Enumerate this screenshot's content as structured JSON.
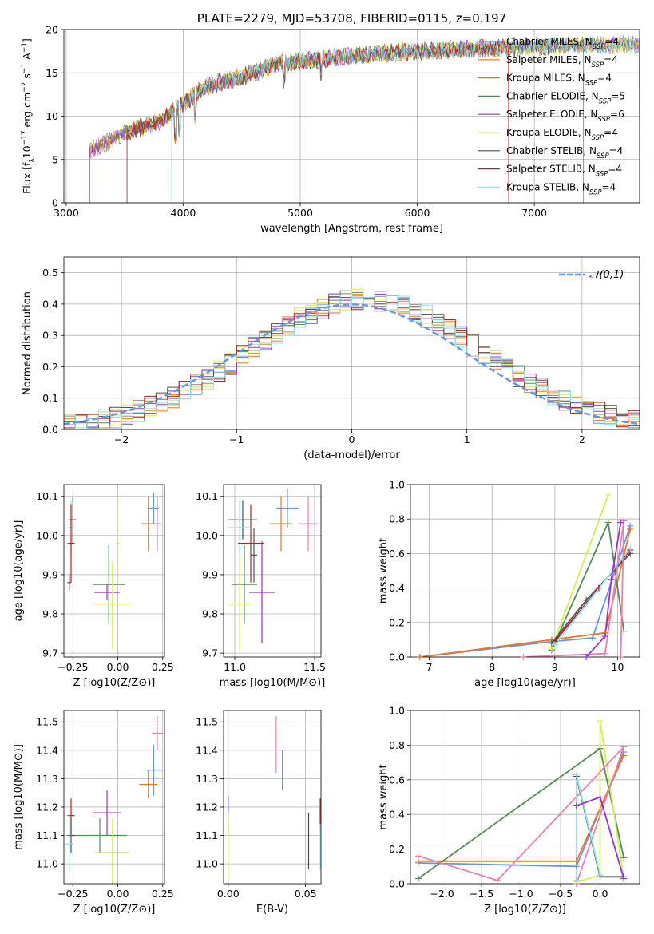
{
  "colors": {
    "Chabrier MILES": "#6495ed",
    "Salpeter MILES": "#ee7621",
    "Kroupa MILES": "#cd8500",
    "Chabrier ELODIE": "#548b54",
    "Salpeter ELODIE": "#9932cc",
    "Kroupa ELODIE": "#e3e35a",
    "Chabrier STELIB": "#4f4f4f",
    "Salpeter STELIB": "#b22222",
    "Kroupa STELIB": "#8ee5ee",
    "pink": "#e87fb0",
    "lime": "#d4ee5a",
    "normal": "#6495ed"
  },
  "chart_data": [
    {
      "id": "spectrum",
      "type": "line",
      "title": "PLATE=2279, MJD=53708, FIBERID=0115, z=0.197",
      "xlabel": "wavelength [Angstrom, rest frame]",
      "ylabel": "Flux [f_λ 10^-17 erg cm^-2 s^-1 A^-1]",
      "xlim": [
        2980,
        7900
      ],
      "ylim": [
        0,
        20
      ],
      "xticks": [
        3000,
        4000,
        5000,
        6000,
        7000
      ],
      "yticks": [
        0,
        5,
        10,
        15,
        20
      ],
      "legend_position": "right",
      "legend": [
        {
          "name": "Chabrier MILES",
          "sub": "SSP",
          "n": "4"
        },
        {
          "name": "Salpeter MILES",
          "sub": "SSP",
          "n": "4"
        },
        {
          "name": "Kroupa MILES",
          "sub": "SSP",
          "n": "4"
        },
        {
          "name": "Chabrier ELODIE",
          "sub": "SSP",
          "n": "5"
        },
        {
          "name": "Salpeter ELODIE",
          "sub": "SSP",
          "n": "6"
        },
        {
          "name": "Kroupa ELODIE",
          "sub": "SSP",
          "n": "4"
        },
        {
          "name": "Chabrier STELIB",
          "sub": "SSP",
          "n": "4"
        },
        {
          "name": "Salpeter STELIB",
          "sub": "SSP",
          "n": "4"
        },
        {
          "name": "Kroupa STELIB",
          "sub": "SSP",
          "n": "4"
        }
      ],
      "continuum": [
        [
          3200,
          6
        ],
        [
          3500,
          8
        ],
        [
          3800,
          9.5
        ],
        [
          4000,
          11.5
        ],
        [
          4200,
          13.5
        ],
        [
          4500,
          14.5
        ],
        [
          4800,
          16
        ],
        [
          5000,
          16.3
        ],
        [
          5500,
          17
        ],
        [
          6000,
          17.5
        ],
        [
          6500,
          17.8
        ],
        [
          7000,
          18
        ],
        [
          7400,
          18.2
        ],
        [
          7900,
          18.3
        ]
      ],
      "series_start": [
        3200,
        3200,
        3200,
        3200,
        3200,
        3520,
        3520,
        3520,
        3900
      ],
      "series_end": [
        7900,
        7900,
        7900,
        7900,
        7900,
        7900,
        7420,
        6780,
        7900
      ]
    },
    {
      "id": "residuals",
      "type": "histogram",
      "xlabel": "(data-model)/error",
      "ylabel": "Normed distribution",
      "xlim": [
        -2.5,
        2.5
      ],
      "ylim": [
        0,
        0.55
      ],
      "xticks": [
        -2,
        -1,
        0,
        1,
        2
      ],
      "yticks": [
        0.0,
        0.1,
        0.2,
        0.3,
        0.4,
        0.5
      ],
      "legend": "𝒩(0,1)",
      "legend_position": "top-right",
      "bin_width": 0.1,
      "n_series": 9
    },
    {
      "id": "age-vs-Z",
      "type": "errorbar",
      "xlabel": "Z [log10(Z/Z⊙)]",
      "ylabel": "age [log10(age/yr)]",
      "xlim": [
        -0.3,
        0.26
      ],
      "ylim": [
        9.69,
        10.13
      ],
      "xticks": [
        -0.25,
        0,
        0.25
      ],
      "xticklabels": [
        "−0.25",
        "0.00",
        "0.25"
      ],
      "yticks": [
        9.7,
        9.8,
        9.9,
        10.0,
        10.1
      ],
      "points": [
        {
          "s": "Chabrier MILES",
          "x": 0.2,
          "y": 10.07,
          "xe": 0.03,
          "ye": 0.04
        },
        {
          "s": "pink",
          "x": 0.22,
          "y": 10.03,
          "xe": 0.02,
          "ye": 0.07
        },
        {
          "s": "Salpeter MILES",
          "x": 0.17,
          "y": 10.03,
          "xe": 0.04,
          "ye": 0.07
        },
        {
          "s": "Chabrier STELIB",
          "x": -0.25,
          "y": 10.04,
          "xe": 0.02,
          "ye": 0.06
        },
        {
          "s": "Kroupa STELIB",
          "x": -0.26,
          "y": 10.02,
          "xe": 0.02,
          "ye": 0.07
        },
        {
          "s": "Salpeter STELIB",
          "x": -0.26,
          "y": 9.98,
          "xe": 0.02,
          "ye": 0.1
        },
        {
          "s": "Kroupa ELODIE",
          "x": 0.0,
          "y": 9.98,
          "xe": 0.01,
          "ye": 0.12
        },
        {
          "s": "Chabrier ELODIE",
          "x": -0.05,
          "y": 9.875,
          "xe": 0.09,
          "ye": 0.1
        },
        {
          "s": "Salpeter ELODIE",
          "x": -0.06,
          "y": 9.855,
          "xe": 0.07,
          "ye": 0.02
        },
        {
          "s": "lime",
          "x": -0.03,
          "y": 9.825,
          "xe": 0.1,
          "ye": 0.11
        },
        {
          "s": "Chabrier STELIB",
          "x": -0.27,
          "y": 9.88,
          "xe": 0.01,
          "ye": 0.02
        }
      ]
    },
    {
      "id": "age-vs-mass",
      "type": "errorbar",
      "xlabel": "mass [log10(M/M⊙)]",
      "ylabel": "",
      "xlim": [
        10.93,
        11.54
      ],
      "ylim": [
        9.69,
        10.13
      ],
      "xticks": [
        11.0,
        11.5
      ],
      "xticklabels": [
        "11.0",
        "11.5"
      ],
      "yticks": [
        9.7,
        9.8,
        9.9,
        10.0,
        10.1
      ],
      "points": [
        {
          "s": "Chabrier MILES",
          "x": 11.33,
          "y": 10.07,
          "xe": 0.07,
          "ye": 0.05
        },
        {
          "s": "pink",
          "x": 11.46,
          "y": 10.03,
          "xe": 0.06,
          "ye": 0.07
        },
        {
          "s": "Salpeter MILES",
          "x": 11.29,
          "y": 10.03,
          "xe": 0.07,
          "ye": 0.07
        },
        {
          "s": "Chabrier STELIB",
          "x": 11.05,
          "y": 10.04,
          "xe": 0.09,
          "ye": 0.05
        },
        {
          "s": "Kroupa STELIB",
          "x": 11.03,
          "y": 10.02,
          "xe": 0.07,
          "ye": 0.07
        },
        {
          "s": "Salpeter STELIB",
          "x": 11.1,
          "y": 9.98,
          "xe": 0.08,
          "ye": 0.1
        },
        {
          "s": "Chabrier ELODIE",
          "x": 11.06,
          "y": 9.875,
          "xe": 0.08,
          "ye": 0.1
        },
        {
          "s": "Salpeter ELODIE",
          "x": 11.17,
          "y": 9.855,
          "xe": 0.08,
          "ye": 0.13
        },
        {
          "s": "lime",
          "x": 11.03,
          "y": 9.825,
          "xe": 0.07,
          "ye": 0.12
        },
        {
          "s": "Chabrier STELIB",
          "x": 11.12,
          "y": 9.95,
          "xe": 0.02,
          "ye": 0.07
        }
      ]
    },
    {
      "id": "massweight-vs-age",
      "type": "line",
      "xlabel": "age [log10(age/yr)]",
      "ylabel": "mass weight",
      "xlim": [
        6.7,
        10.35
      ],
      "ylim": [
        0,
        1.0
      ],
      "xticks": [
        7,
        8,
        9,
        10
      ],
      "xticklabels": [
        "7",
        "8",
        "9",
        "10"
      ],
      "yticks": [
        0.0,
        0.2,
        0.4,
        0.6,
        0.8,
        1.0
      ],
      "series": [
        {
          "s": "Chabrier MILES",
          "x": [
            6.85,
            8.95,
            9.6,
            10.2
          ],
          "y": [
            0.0,
            0.09,
            0.11,
            0.76
          ]
        },
        {
          "s": "Salpeter MILES",
          "x": [
            6.85,
            8.95,
            9.8,
            10.2
          ],
          "y": [
            0.0,
            0.1,
            0.14,
            0.74
          ]
        },
        {
          "s": "Chabrier ELODIE",
          "x": [
            8.95,
            9.85,
            10.1
          ],
          "y": [
            0.04,
            0.78,
            0.15
          ]
        },
        {
          "s": "lime",
          "x": [
            8.95,
            9.85
          ],
          "y": [
            0.05,
            0.94
          ]
        },
        {
          "s": "Chabrier STELIB",
          "x": [
            8.95,
            9.5,
            10.2
          ],
          "y": [
            0.08,
            0.33,
            0.6
          ]
        },
        {
          "s": "Salpeter STELIB",
          "x": [
            9.0,
            9.7,
            10.2
          ],
          "y": [
            0.09,
            0.4,
            0.62
          ]
        },
        {
          "s": "Kroupa STELIB",
          "x": [
            9.0,
            10.2
          ],
          "y": [
            0.07,
            0.63
          ]
        },
        {
          "s": "pink",
          "x": [
            8.5,
            9.8,
            10.1,
            10.05
          ],
          "y": [
            0.0,
            0.02,
            0.79,
            0.0
          ]
        },
        {
          "s": "Salpeter ELODIE",
          "x": [
            9.5,
            9.8,
            9.9,
            10.05
          ],
          "y": [
            0.0,
            0.12,
            0.45,
            0.78
          ]
        }
      ]
    },
    {
      "id": "mass-vs-Z",
      "type": "errorbar",
      "xlabel": "Z [log10(Z/Z⊙)]",
      "ylabel": "mass [log10(M/M⊙)]",
      "xlim": [
        -0.3,
        0.26
      ],
      "ylim": [
        10.93,
        11.54
      ],
      "xticks": [
        -0.25,
        0,
        0.25
      ],
      "xticklabels": [
        "−0.25",
        "0.00",
        "0.25"
      ],
      "yticks": [
        11.0,
        11.1,
        11.2,
        11.3,
        11.4,
        11.5
      ],
      "points": [
        {
          "s": "pink",
          "x": 0.22,
          "y": 11.46,
          "xe": 0.03,
          "ye": 0.06
        },
        {
          "s": "Chabrier MILES",
          "x": 0.2,
          "y": 11.33,
          "xe": 0.05,
          "ye": 0.09
        },
        {
          "s": "Salpeter MILES",
          "x": 0.17,
          "y": 11.28,
          "xe": 0.05,
          "ye": 0.05
        },
        {
          "s": "Salpeter ELODIE",
          "x": -0.06,
          "y": 11.18,
          "xe": 0.08,
          "ye": 0.08
        },
        {
          "s": "Salpeter STELIB",
          "x": -0.26,
          "y": 11.17,
          "xe": 0.02,
          "ye": 0.06
        },
        {
          "s": "Chabrier ELODIE",
          "x": -0.1,
          "y": 11.1,
          "xe": 0.15,
          "ye": 0.06
        },
        {
          "s": "Chabrier STELIB",
          "x": -0.26,
          "y": 11.1,
          "xe": 0.02,
          "ye": 0.06
        },
        {
          "s": "Kroupa STELIB",
          "x": -0.27,
          "y": 11.07,
          "xe": 0.02,
          "ye": 0.1
        },
        {
          "s": "lime",
          "x": -0.03,
          "y": 11.04,
          "xe": 0.1,
          "ye": 0.12
        }
      ]
    },
    {
      "id": "mass-vs-EBV",
      "type": "errorbar",
      "xlabel": "E(B-V)",
      "ylabel": "",
      "xlim": [
        -0.003,
        0.06
      ],
      "ylim": [
        10.93,
        11.54
      ],
      "xticks": [
        0,
        0.05
      ],
      "xticklabels": [
        "0.00",
        "0.05"
      ],
      "yticks": [
        11.0,
        11.1,
        11.2,
        11.3,
        11.4,
        11.5
      ],
      "points": [
        {
          "s": "pink",
          "x": 0.031,
          "y": 11.42,
          "xe": 0,
          "ye": 0.1
        },
        {
          "s": "Chabrier MILES",
          "x": 0.035,
          "y": 11.33,
          "xe": 0,
          "ye": 0.07
        },
        {
          "s": "Salpeter ELODIE",
          "x": 0.0,
          "y": 11.18,
          "xe": 0,
          "ye": 0.06
        },
        {
          "s": "lime",
          "x": 0.0,
          "y": 11.06,
          "xe": 0,
          "ye": 0.12
        },
        {
          "s": "Chabrier STELIB",
          "x": 0.052,
          "y": 11.08,
          "xe": 0,
          "ye": 0.1
        },
        {
          "s": "Salpeter STELIB",
          "x": 0.0595,
          "y": 11.17,
          "xe": 0,
          "ye": 0.06
        },
        {
          "s": "Kroupa STELIB",
          "x": 0.0595,
          "y": 11.06,
          "xe": 0,
          "ye": 0.08
        }
      ]
    },
    {
      "id": "massweight-vs-Z",
      "type": "line",
      "xlabel": "Z [log10(Z/Z⊙)]",
      "ylabel": "mass weight",
      "xlim": [
        -2.4,
        0.5
      ],
      "ylim": [
        0,
        1.0
      ],
      "xticks": [
        -2.0,
        -1.5,
        -1.0,
        -0.5,
        0.0
      ],
      "xticklabels": [
        "−2.0",
        "−1.5",
        "−1.0",
        "−0.5",
        "0.0"
      ],
      "yticks": [
        0.0,
        0.2,
        0.4,
        0.6,
        0.8,
        1.0
      ],
      "series": [
        {
          "s": "Chabrier MILES",
          "x": [
            -2.3,
            -0.3,
            0.3
          ],
          "y": [
            0.12,
            0.1,
            0.76
          ]
        },
        {
          "s": "Salpeter MILES",
          "x": [
            -2.3,
            -0.3,
            0.3
          ],
          "y": [
            0.13,
            0.13,
            0.74
          ]
        },
        {
          "s": "Chabrier ELODIE",
          "x": [
            -2.3,
            0.0,
            0.3
          ],
          "y": [
            0.03,
            0.78,
            0.15
          ]
        },
        {
          "s": "lime",
          "x": [
            -0.3,
            0.0,
            0.0,
            0.3
          ],
          "y": [
            0.01,
            0.05,
            0.94,
            0.03
          ]
        },
        {
          "s": "pink",
          "x": [
            -2.3,
            -1.3,
            0.3,
            -0.3
          ],
          "y": [
            0.16,
            0.02,
            0.79,
            0.0
          ]
        },
        {
          "s": "Chabrier STELIB",
          "x": [
            -0.3,
            0.0,
            0.3
          ],
          "y": [
            0.62,
            0.04,
            0.04
          ]
        },
        {
          "s": "Kroupa STELIB",
          "x": [
            -0.3,
            -0.3,
            0.0
          ],
          "y": [
            0.02,
            0.63,
            0.05
          ]
        },
        {
          "s": "Salpeter ELODIE",
          "x": [
            -0.3,
            0.0,
            0.3
          ],
          "y": [
            0.45,
            0.5,
            0.03
          ]
        }
      ]
    }
  ]
}
